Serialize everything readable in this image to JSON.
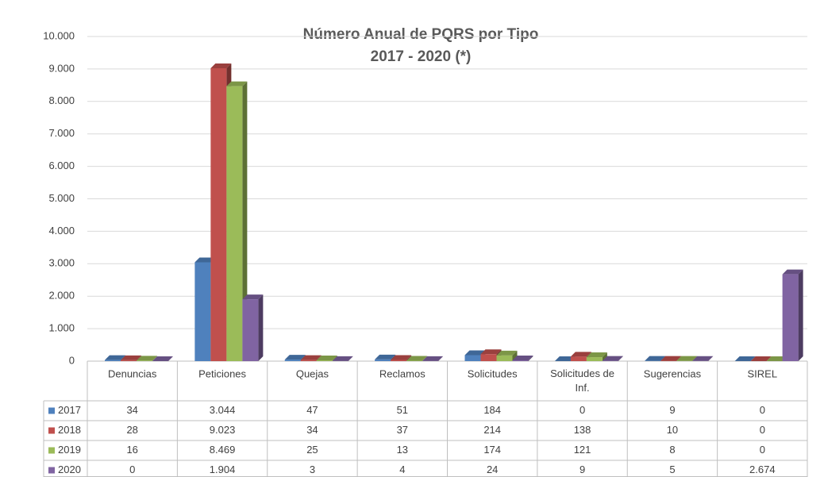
{
  "chart_data": {
    "type": "bar",
    "title": "Número Anual de PQRS por Tipo",
    "subtitle": "2017 - 2020 (*)",
    "categories": [
      "Denuncias",
      "Peticiones",
      "Quejas",
      "Reclamos",
      "Solicitudes",
      "Solicitudes de Inf.",
      "Sugerencias",
      "SIREL"
    ],
    "series": [
      {
        "name": "2017",
        "color": "#4f81bd",
        "values": [
          34,
          3044,
          47,
          51,
          184,
          0,
          9,
          0
        ],
        "value_labels": [
          "34",
          "3.044",
          "47",
          "51",
          "184",
          "0",
          "9",
          "0"
        ]
      },
      {
        "name": "2018",
        "color": "#c0504d",
        "values": [
          28,
          9023,
          34,
          37,
          214,
          138,
          10,
          0
        ],
        "value_labels": [
          "28",
          "9.023",
          "34",
          "37",
          "214",
          "138",
          "10",
          "0"
        ]
      },
      {
        "name": "2019",
        "color": "#9bbb59",
        "values": [
          16,
          8469,
          25,
          13,
          174,
          121,
          8,
          0
        ],
        "value_labels": [
          "16",
          "8.469",
          "25",
          "13",
          "174",
          "121",
          "8",
          "0"
        ]
      },
      {
        "name": "2020",
        "color": "#8064a2",
        "values": [
          0,
          1904,
          3,
          4,
          24,
          9,
          5,
          2674
        ],
        "value_labels": [
          "0",
          "1.904",
          "3",
          "4",
          "24",
          "9",
          "5",
          "2.674"
        ]
      }
    ],
    "ylim": [
      0,
      10000
    ],
    "yticks": [
      0,
      {
        "value": 1000,
        "label": "1.000"
      },
      {
        "value": 2000,
        "label": "2.000"
      },
      {
        "value": 3000,
        "label": "3.000"
      },
      {
        "value": 4000,
        "label": "4.000"
      },
      {
        "value": 5000,
        "label": "5.000"
      },
      {
        "value": 6000,
        "label": "6.000"
      },
      {
        "value": 7000,
        "label": "7.000"
      },
      {
        "value": 8000,
        "label": "8.000"
      },
      {
        "value": 9000,
        "label": "9.000"
      },
      {
        "value": 10000,
        "label": "10.000"
      }
    ],
    "grid": true
  }
}
